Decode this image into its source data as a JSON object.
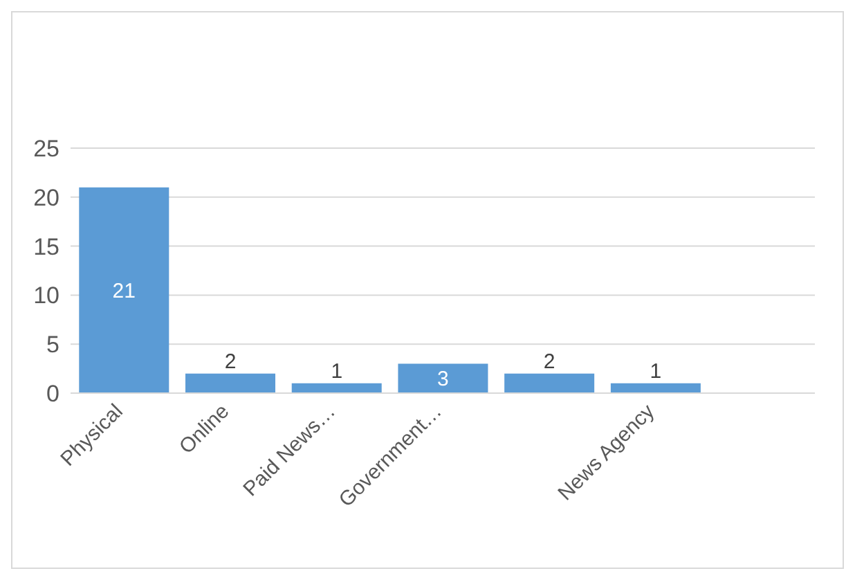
{
  "chart_data": {
    "type": "bar",
    "categories": [
      "Physical",
      "Online",
      "Paid News…",
      "Government…",
      null,
      "News Agency",
      null
    ],
    "values": [
      21,
      2,
      1,
      3,
      2,
      1,
      null
    ],
    "color": "#5b9bd5",
    "ylim": [
      0,
      25
    ],
    "yticks": [
      0,
      5,
      10,
      15,
      20,
      25
    ],
    "grid": "y",
    "data_labels": true
  }
}
